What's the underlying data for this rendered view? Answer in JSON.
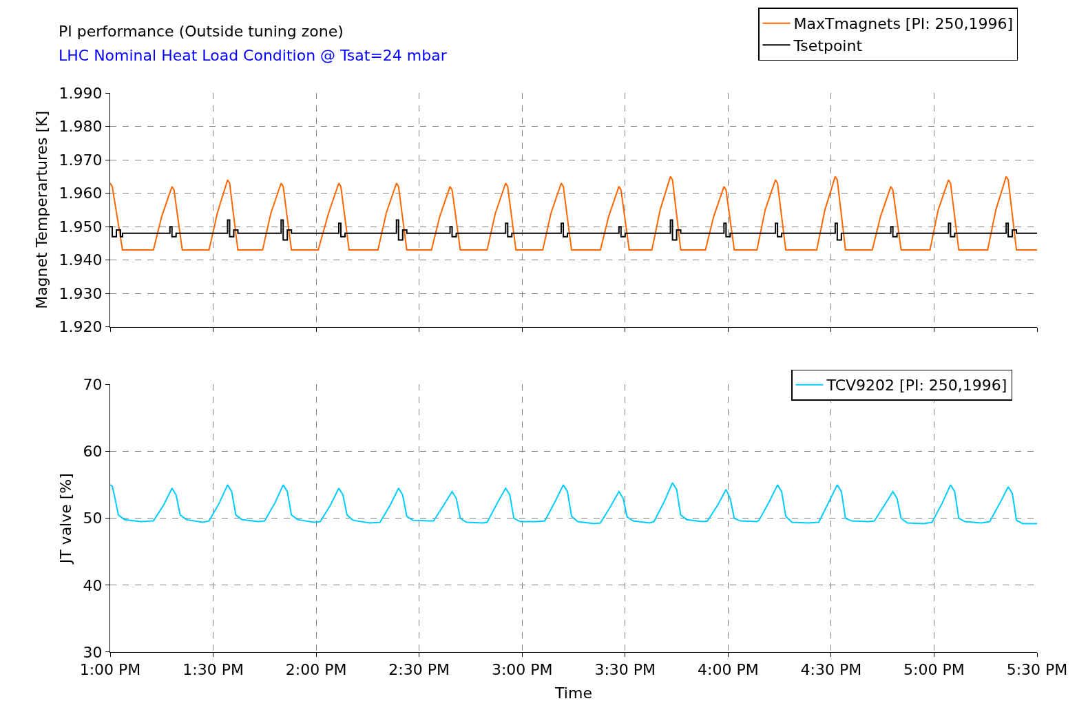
{
  "chart_data": [
    {
      "type": "line",
      "title": "PI performance (Outside tuning zone)",
      "subtitle": "LHC Nominal Heat Load Condition @ Tsat=24 mbar",
      "ylabel": "Magnet Temperartures [K]",
      "xlim": [
        13,
        17.5
      ],
      "ylim": [
        1.92,
        1.99
      ],
      "yticks": [
        {
          "value": 1.92,
          "label": "1.920"
        },
        {
          "value": 1.93,
          "label": "1.930"
        },
        {
          "value": 1.94,
          "label": "1.940"
        },
        {
          "value": 1.95,
          "label": "1.950"
        },
        {
          "value": 1.96,
          "label": "1.960"
        },
        {
          "value": 1.97,
          "label": "1.970"
        },
        {
          "value": 1.98,
          "label": "1.980"
        },
        {
          "value": 1.99,
          "label": "1.990"
        }
      ],
      "tick_labels": "y",
      "grid": true,
      "legend": "top right",
      "marker": "none",
      "line_style": "solid",
      "series": [
        {
          "name": "MaxTmagnets [PI: 250,1996]",
          "color": "#ff6600",
          "x": [
            13.0,
            13.01,
            13.06,
            13.21,
            13.25,
            13.3,
            13.31,
            13.35,
            13.48,
            13.52,
            13.57,
            13.58,
            13.62,
            13.74,
            13.78,
            13.83,
            13.84,
            13.88,
            14.01,
            14.06,
            14.11,
            14.12,
            14.16,
            14.3,
            14.34,
            14.39,
            14.4,
            14.44,
            14.56,
            14.6,
            14.65,
            14.66,
            14.7,
            14.83,
            14.87,
            14.92,
            14.93,
            14.97,
            15.1,
            15.14,
            15.19,
            15.2,
            15.24,
            15.38,
            15.42,
            15.47,
            15.48,
            15.52,
            15.63,
            15.67,
            15.72,
            15.73,
            15.77,
            15.89,
            15.93,
            15.98,
            15.99,
            16.03,
            16.14,
            16.18,
            16.23,
            16.24,
            16.28,
            16.43,
            16.47,
            16.52,
            16.53,
            16.57,
            16.7,
            16.74,
            16.79,
            16.8,
            16.84,
            16.98,
            17.02,
            17.07,
            17.08,
            17.12,
            17.26,
            17.3,
            17.35,
            17.36,
            17.4,
            17.5
          ],
          "values": [
            1.963,
            1.962,
            1.943,
            1.943,
            1.953,
            1.962,
            1.961,
            1.943,
            1.943,
            1.954,
            1.964,
            1.963,
            1.943,
            1.943,
            1.954,
            1.963,
            1.962,
            1.943,
            1.943,
            1.954,
            1.963,
            1.962,
            1.943,
            1.943,
            1.954,
            1.963,
            1.962,
            1.943,
            1.943,
            1.953,
            1.962,
            1.961,
            1.943,
            1.943,
            1.954,
            1.963,
            1.962,
            1.943,
            1.943,
            1.954,
            1.963,
            1.962,
            1.943,
            1.943,
            1.953,
            1.962,
            1.961,
            1.943,
            1.943,
            1.955,
            1.965,
            1.964,
            1.943,
            1.943,
            1.953,
            1.962,
            1.961,
            1.943,
            1.943,
            1.955,
            1.964,
            1.963,
            1.943,
            1.943,
            1.955,
            1.965,
            1.964,
            1.943,
            1.943,
            1.953,
            1.962,
            1.961,
            1.943,
            1.943,
            1.955,
            1.964,
            1.963,
            1.943,
            1.943,
            1.955,
            1.965,
            1.964,
            1.943,
            1.943
          ]
        },
        {
          "name": "Tsetpoint",
          "color": "#000000",
          "type": "step",
          "x": [
            13.0,
            13.01,
            13.03,
            13.05,
            13.06,
            13.27,
            13.29,
            13.3,
            13.32,
            13.55,
            13.57,
            13.58,
            13.6,
            13.62,
            13.81,
            13.83,
            13.84,
            13.86,
            13.88,
            14.09,
            14.11,
            14.12,
            14.14,
            14.37,
            14.39,
            14.4,
            14.42,
            14.44,
            14.63,
            14.65,
            14.66,
            14.68,
            14.9,
            14.92,
            14.93,
            14.95,
            15.17,
            15.19,
            15.2,
            15.22,
            15.45,
            15.47,
            15.48,
            15.5,
            15.7,
            15.72,
            15.73,
            15.75,
            15.77,
            15.96,
            15.98,
            15.99,
            16.01,
            16.21,
            16.23,
            16.24,
            16.26,
            16.5,
            16.52,
            16.53,
            16.55,
            16.77,
            16.79,
            16.8,
            16.82,
            17.05,
            17.07,
            17.08,
            17.1,
            17.33,
            17.35,
            17.36,
            17.38,
            17.4,
            17.5
          ],
          "values": [
            1.95,
            1.947,
            1.949,
            1.947,
            1.948,
            1.948,
            1.95,
            1.947,
            1.948,
            1.948,
            1.952,
            1.947,
            1.949,
            1.948,
            1.948,
            1.952,
            1.946,
            1.949,
            1.948,
            1.948,
            1.951,
            1.947,
            1.948,
            1.948,
            1.952,
            1.946,
            1.949,
            1.948,
            1.948,
            1.95,
            1.947,
            1.948,
            1.948,
            1.951,
            1.947,
            1.948,
            1.948,
            1.951,
            1.947,
            1.948,
            1.948,
            1.95,
            1.947,
            1.948,
            1.948,
            1.952,
            1.946,
            1.949,
            1.948,
            1.948,
            1.951,
            1.947,
            1.948,
            1.948,
            1.951,
            1.947,
            1.948,
            1.948,
            1.951,
            1.946,
            1.948,
            1.948,
            1.95,
            1.947,
            1.948,
            1.948,
            1.951,
            1.947,
            1.948,
            1.948,
            1.951,
            1.947,
            1.949,
            1.948,
            1.948
          ]
        }
      ]
    },
    {
      "type": "line",
      "xlabel": "Time",
      "ylabel": "JT valve [%]",
      "xlim": [
        13,
        17.5
      ],
      "xticks": [
        {
          "value": 13,
          "label": "1:00 PM"
        },
        {
          "value": 13.5,
          "label": "1:30 PM"
        },
        {
          "value": 14,
          "label": "2:00 PM"
        },
        {
          "value": 14.5,
          "label": "2:30 PM"
        },
        {
          "value": 15,
          "label": "3:00 PM"
        },
        {
          "value": 15.5,
          "label": "3:30 PM"
        },
        {
          "value": 16,
          "label": "4:00 PM"
        },
        {
          "value": 16.5,
          "label": "4:30 PM"
        },
        {
          "value": 17,
          "label": "5:00 PM"
        },
        {
          "value": 17.5,
          "label": "5:30 PM"
        }
      ],
      "ylim": [
        30,
        70
      ],
      "yticks": [
        30,
        40,
        50,
        60,
        70
      ],
      "grid": true,
      "legend": "top right",
      "marker": "none",
      "line_style": "solid",
      "series": [
        {
          "name": "TCV9202 [PI: 250,1996]",
          "color": "#00ccff",
          "x": [
            13.0,
            13.01,
            13.02,
            13.04,
            13.07,
            13.15,
            13.21,
            13.26,
            13.3,
            13.32,
            13.34,
            13.37,
            13.45,
            13.48,
            13.53,
            13.57,
            13.59,
            13.61,
            13.64,
            13.72,
            13.75,
            13.8,
            13.84,
            13.86,
            13.88,
            13.91,
            13.99,
            14.02,
            14.07,
            14.11,
            14.13,
            14.15,
            14.18,
            14.26,
            14.31,
            14.36,
            14.4,
            14.42,
            14.44,
            14.47,
            14.55,
            14.57,
            14.62,
            14.66,
            14.68,
            14.7,
            14.73,
            14.81,
            14.83,
            14.88,
            14.92,
            14.94,
            14.96,
            14.99,
            15.07,
            15.11,
            15.16,
            15.2,
            15.22,
            15.24,
            15.27,
            15.35,
            15.38,
            15.43,
            15.47,
            15.49,
            15.51,
            15.54,
            15.62,
            15.64,
            15.69,
            15.73,
            15.75,
            15.77,
            15.8,
            15.88,
            15.9,
            15.95,
            15.99,
            16.01,
            16.03,
            16.06,
            16.14,
            16.15,
            16.2,
            16.24,
            16.26,
            16.28,
            16.31,
            16.39,
            16.44,
            16.49,
            16.53,
            16.55,
            16.57,
            16.6,
            16.68,
            16.71,
            16.76,
            16.8,
            16.82,
            16.84,
            16.87,
            16.95,
            16.99,
            17.04,
            17.08,
            17.1,
            17.12,
            17.15,
            17.23,
            17.27,
            17.32,
            17.36,
            17.38,
            17.4,
            17.43,
            17.5
          ],
          "values": [
            55.0,
            54.8,
            53.5,
            50.5,
            49.8,
            49.5,
            49.6,
            52.0,
            54.5,
            53.5,
            50.5,
            49.8,
            49.4,
            49.6,
            52.3,
            55.0,
            54.0,
            50.5,
            49.8,
            49.5,
            49.6,
            52.3,
            55.0,
            54.0,
            50.5,
            49.8,
            49.4,
            49.5,
            52.0,
            54.5,
            53.5,
            50.5,
            49.7,
            49.3,
            49.4,
            52.0,
            54.5,
            53.5,
            50.3,
            49.7,
            49.6,
            49.6,
            52.0,
            54.0,
            53.0,
            50.0,
            49.4,
            49.3,
            49.4,
            52.3,
            54.5,
            53.5,
            50.0,
            49.5,
            49.5,
            49.6,
            52.5,
            55.0,
            54.0,
            50.3,
            49.5,
            49.2,
            49.3,
            51.8,
            54.0,
            53.0,
            50.2,
            49.6,
            49.3,
            49.5,
            52.5,
            55.3,
            54.3,
            50.5,
            49.8,
            49.5,
            49.6,
            52.0,
            54.3,
            53.0,
            50.0,
            49.6,
            49.5,
            49.7,
            52.5,
            55.0,
            54.0,
            50.3,
            49.4,
            49.3,
            49.4,
            52.5,
            55.0,
            54.0,
            50.0,
            49.6,
            49.5,
            49.6,
            52.0,
            54.0,
            53.0,
            50.0,
            49.3,
            49.2,
            49.4,
            52.3,
            55.0,
            54.0,
            50.0,
            49.5,
            49.3,
            49.5,
            52.3,
            54.7,
            53.7,
            49.7,
            49.2,
            49.2
          ]
        }
      ]
    }
  ]
}
